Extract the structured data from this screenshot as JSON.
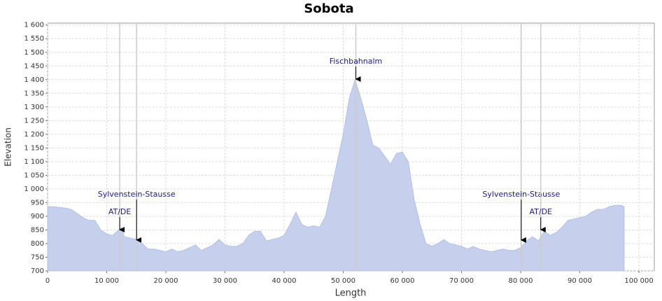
{
  "chart_data": {
    "type": "area",
    "title": "Sobota",
    "x_label": "Length",
    "y_label": "Elevation",
    "color": "#c6d0ec",
    "grid": true,
    "xlim": [
      0,
      102600
    ],
    "ylim": [
      700,
      1607
    ],
    "xticks": [
      0,
      {
        "value": 10000,
        "label": "10 000"
      },
      {
        "value": 20000,
        "label": "20 000"
      },
      {
        "value": 30000,
        "label": "30 000"
      },
      {
        "value": 40000,
        "label": "40 000"
      },
      {
        "value": 50000,
        "label": "50 000"
      },
      {
        "value": 60000,
        "label": "60 000"
      },
      {
        "value": 70000,
        "label": "70 000"
      },
      {
        "value": 80000,
        "label": "80 000"
      },
      {
        "value": 90000,
        "label": "90 000"
      },
      {
        "value": 100000,
        "label": "100 000"
      }
    ],
    "yticks": [
      700,
      750,
      800,
      850,
      900,
      950,
      {
        "value": 1000,
        "label": "1 000"
      },
      {
        "value": 1050,
        "label": "1 050"
      },
      {
        "value": 1100,
        "label": "1 100"
      },
      {
        "value": 1150,
        "label": "1 150"
      },
      {
        "value": 1200,
        "label": "1 200"
      },
      {
        "value": 1250,
        "label": "1 250"
      },
      {
        "value": 1300,
        "label": "1 300"
      },
      {
        "value": 1350,
        "label": "1 350"
      },
      {
        "value": 1400,
        "label": "1 400"
      },
      {
        "value": 1450,
        "label": "1 450"
      },
      {
        "value": 1500,
        "label": "1 500"
      },
      {
        "value": 1550,
        "label": "1 550"
      },
      {
        "value": 1600,
        "label": "1 600"
      }
    ],
    "x": [
      0,
      1000,
      2000,
      3000,
      4000,
      5000,
      6000,
      7000,
      8000,
      9000,
      10000,
      11000,
      12000,
      12500,
      13000,
      14000,
      15000,
      16000,
      17000,
      18000,
      19000,
      20000,
      21000,
      22000,
      23000,
      24000,
      25000,
      26000,
      27000,
      28000,
      29000,
      30000,
      31000,
      32000,
      33000,
      34000,
      35000,
      36000,
      37000,
      38000,
      39000,
      40000,
      41000,
      42000,
      43000,
      44000,
      45000,
      46000,
      47000,
      48000,
      49000,
      50000,
      51000,
      52000,
      53000,
      54000,
      55000,
      56000,
      57000,
      58000,
      59000,
      60000,
      61000,
      62000,
      63000,
      64000,
      65000,
      66000,
      67000,
      68000,
      69000,
      70000,
      71000,
      72000,
      73000,
      74000,
      75000,
      76000,
      77000,
      78000,
      79000,
      80000,
      81000,
      82000,
      83000,
      84000,
      85000,
      86000,
      87000,
      88000,
      89000,
      90000,
      91000,
      92000,
      93000,
      94000,
      95000,
      96000,
      97000,
      97500
    ],
    "values": [
      935,
      935,
      933,
      930,
      925,
      910,
      895,
      885,
      885,
      850,
      835,
      830,
      850,
      858,
      825,
      820,
      815,
      800,
      780,
      780,
      775,
      770,
      780,
      770,
      775,
      785,
      795,
      775,
      785,
      795,
      815,
      795,
      790,
      790,
      800,
      830,
      845,
      845,
      810,
      815,
      820,
      830,
      870,
      915,
      870,
      860,
      865,
      860,
      900,
      1000,
      1100,
      1200,
      1330,
      1400,
      1330,
      1250,
      1160,
      1150,
      1120,
      1090,
      1130,
      1135,
      1100,
      960,
      870,
      800,
      790,
      800,
      815,
      800,
      795,
      790,
      780,
      790,
      780,
      775,
      770,
      775,
      780,
      775,
      775,
      785,
      810,
      825,
      810,
      845,
      830,
      840,
      860,
      885,
      890,
      895,
      900,
      915,
      925,
      925,
      935,
      940,
      940,
      935
    ],
    "annotations": [
      {
        "label": "AT/DE",
        "x": 12200,
        "y": 851
      },
      {
        "label": "Sylvenstein-Stausse",
        "x": 15050,
        "y": 813
      },
      {
        "label": "Fischbahnalm",
        "x": 52130,
        "y": 1402
      },
      {
        "label": "Sylvenstein-Stausse",
        "x": 80100,
        "y": 813
      },
      {
        "label": "AT/DE",
        "x": 83400,
        "y": 851
      }
    ]
  }
}
